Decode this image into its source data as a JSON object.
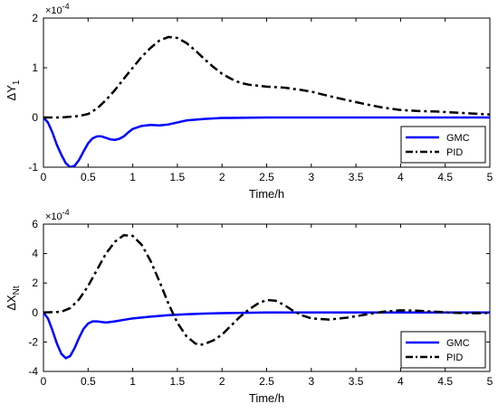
{
  "chart_data": [
    {
      "type": "line",
      "xlabel": "Time/h",
      "ylabel_main": "ΔY",
      "ylabel_sub": "1",
      "scale_base": "×10",
      "scale_exp": "-4",
      "xlim": [
        0,
        5
      ],
      "ylim": [
        -1,
        2
      ],
      "xticks": [
        "0",
        "0.5",
        "1",
        "1.5",
        "2",
        "2.5",
        "3",
        "3.5",
        "4",
        "4.5",
        "5"
      ],
      "yticks": [
        "-1",
        "0",
        "1",
        "2"
      ],
      "legend_position": "bottom-right",
      "series": [
        {
          "name": "GMC",
          "color": "#0000ff",
          "style": "solid",
          "points": [
            [
              0,
              0
            ],
            [
              0.05,
              -0.1
            ],
            [
              0.1,
              -0.3
            ],
            [
              0.15,
              -0.55
            ],
            [
              0.2,
              -0.75
            ],
            [
              0.25,
              -0.92
            ],
            [
              0.3,
              -1.0
            ],
            [
              0.35,
              -0.97
            ],
            [
              0.4,
              -0.85
            ],
            [
              0.45,
              -0.68
            ],
            [
              0.5,
              -0.52
            ],
            [
              0.55,
              -0.42
            ],
            [
              0.6,
              -0.38
            ],
            [
              0.65,
              -0.38
            ],
            [
              0.7,
              -0.41
            ],
            [
              0.75,
              -0.44
            ],
            [
              0.8,
              -0.45
            ],
            [
              0.85,
              -0.43
            ],
            [
              0.9,
              -0.38
            ],
            [
              0.95,
              -0.3
            ],
            [
              1.0,
              -0.23
            ],
            [
              1.1,
              -0.17
            ],
            [
              1.2,
              -0.15
            ],
            [
              1.3,
              -0.16
            ],
            [
              1.4,
              -0.14
            ],
            [
              1.5,
              -0.1
            ],
            [
              1.6,
              -0.06
            ],
            [
              1.8,
              -0.03
            ],
            [
              2.0,
              -0.01
            ],
            [
              2.5,
              0.0
            ],
            [
              3.0,
              0.0
            ],
            [
              4.0,
              0.0
            ],
            [
              5.0,
              0.0
            ]
          ]
        },
        {
          "name": "PID",
          "color": "#000000",
          "style": "dashdot",
          "points": [
            [
              0,
              0
            ],
            [
              0.2,
              0
            ],
            [
              0.4,
              0.03
            ],
            [
              0.5,
              0.07
            ],
            [
              0.6,
              0.18
            ],
            [
              0.7,
              0.35
            ],
            [
              0.8,
              0.55
            ],
            [
              0.9,
              0.78
            ],
            [
              1.0,
              1.0
            ],
            [
              1.1,
              1.22
            ],
            [
              1.2,
              1.4
            ],
            [
              1.3,
              1.55
            ],
            [
              1.4,
              1.62
            ],
            [
              1.5,
              1.6
            ],
            [
              1.6,
              1.5
            ],
            [
              1.7,
              1.35
            ],
            [
              1.8,
              1.18
            ],
            [
              1.9,
              1.02
            ],
            [
              2.0,
              0.88
            ],
            [
              2.1,
              0.78
            ],
            [
              2.2,
              0.7
            ],
            [
              2.3,
              0.66
            ],
            [
              2.5,
              0.62
            ],
            [
              2.7,
              0.6
            ],
            [
              2.9,
              0.55
            ],
            [
              3.0,
              0.52
            ],
            [
              3.2,
              0.43
            ],
            [
              3.4,
              0.35
            ],
            [
              3.6,
              0.27
            ],
            [
              3.8,
              0.2
            ],
            [
              4.0,
              0.15
            ],
            [
              4.2,
              0.13
            ],
            [
              4.4,
              0.12
            ],
            [
              4.6,
              0.1
            ],
            [
              4.8,
              0.08
            ],
            [
              5.0,
              0.06
            ]
          ]
        }
      ]
    },
    {
      "type": "line",
      "xlabel": "Time/h",
      "ylabel_main": "ΔX",
      "ylabel_sub": "Nt",
      "scale_base": "×10",
      "scale_exp": "-4",
      "xlim": [
        0,
        5
      ],
      "ylim": [
        -4,
        6
      ],
      "xticks": [
        "0",
        "0.5",
        "1",
        "1.5",
        "2",
        "2.5",
        "3",
        "3.5",
        "4",
        "4.5",
        "5"
      ],
      "yticks": [
        "-4",
        "-2",
        "0",
        "2",
        "4",
        "6"
      ],
      "legend_position": "bottom-right",
      "series": [
        {
          "name": "GMC",
          "color": "#0000ff",
          "style": "solid",
          "points": [
            [
              0,
              0
            ],
            [
              0.05,
              -0.4
            ],
            [
              0.1,
              -1.2
            ],
            [
              0.15,
              -2.1
            ],
            [
              0.2,
              -2.8
            ],
            [
              0.25,
              -3.1
            ],
            [
              0.3,
              -2.95
            ],
            [
              0.35,
              -2.4
            ],
            [
              0.4,
              -1.7
            ],
            [
              0.45,
              -1.1
            ],
            [
              0.5,
              -0.75
            ],
            [
              0.55,
              -0.6
            ],
            [
              0.6,
              -0.6
            ],
            [
              0.7,
              -0.68
            ],
            [
              0.8,
              -0.6
            ],
            [
              0.9,
              -0.5
            ],
            [
              1.0,
              -0.4
            ],
            [
              1.2,
              -0.28
            ],
            [
              1.4,
              -0.18
            ],
            [
              1.6,
              -0.12
            ],
            [
              1.8,
              -0.07
            ],
            [
              2.0,
              -0.04
            ],
            [
              2.5,
              0.0
            ],
            [
              3.0,
              0.0
            ],
            [
              4.0,
              0.0
            ],
            [
              5.0,
              0.0
            ]
          ]
        },
        {
          "name": "PID",
          "color": "#000000",
          "style": "dashdot",
          "points": [
            [
              0,
              0
            ],
            [
              0.2,
              0.05
            ],
            [
              0.3,
              0.3
            ],
            [
              0.4,
              0.9
            ],
            [
              0.5,
              1.8
            ],
            [
              0.6,
              2.9
            ],
            [
              0.7,
              4.0
            ],
            [
              0.8,
              4.8
            ],
            [
              0.9,
              5.25
            ],
            [
              1.0,
              5.2
            ],
            [
              1.1,
              4.6
            ],
            [
              1.2,
              3.5
            ],
            [
              1.3,
              2.1
            ],
            [
              1.4,
              0.6
            ],
            [
              1.5,
              -0.7
            ],
            [
              1.6,
              -1.6
            ],
            [
              1.7,
              -2.1
            ],
            [
              1.75,
              -2.2
            ],
            [
              1.8,
              -2.15
            ],
            [
              1.9,
              -1.9
            ],
            [
              2.0,
              -1.5
            ],
            [
              2.1,
              -0.9
            ],
            [
              2.2,
              -0.3
            ],
            [
              2.3,
              0.2
            ],
            [
              2.4,
              0.6
            ],
            [
              2.5,
              0.85
            ],
            [
              2.6,
              0.8
            ],
            [
              2.7,
              0.5
            ],
            [
              2.8,
              0.1
            ],
            [
              2.9,
              -0.2
            ],
            [
              3.0,
              -0.4
            ],
            [
              3.2,
              -0.48
            ],
            [
              3.4,
              -0.35
            ],
            [
              3.6,
              -0.15
            ],
            [
              3.8,
              0.05
            ],
            [
              4.0,
              0.15
            ],
            [
              4.2,
              0.12
            ],
            [
              4.4,
              0.05
            ],
            [
              4.6,
              -0.02
            ],
            [
              4.8,
              -0.05
            ],
            [
              5.0,
              -0.03
            ]
          ]
        }
      ]
    }
  ]
}
